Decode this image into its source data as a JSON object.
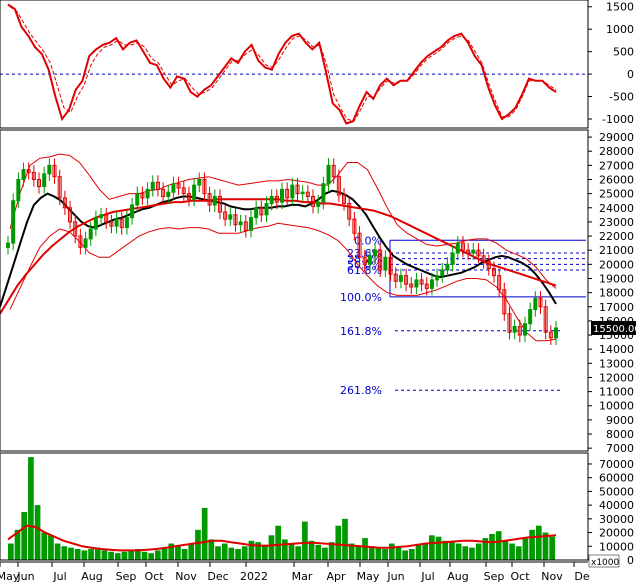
{
  "chart_data": [
    {
      "type": "line",
      "panel": "oscillator",
      "yticks": [
        1500,
        1000,
        500,
        0,
        -500,
        -1000
      ],
      "ylim": [
        -1200,
        1650
      ],
      "zero_line": 0,
      "series": [
        {
          "role": "oscillator",
          "color": "#e00000",
          "style": "solid",
          "values": [
            1550,
            1450,
            1050,
            850,
            600,
            450,
            100,
            -500,
            -1000,
            -800,
            -350,
            -150,
            400,
            550,
            650,
            700,
            800,
            550,
            700,
            750,
            500,
            250,
            200,
            -100,
            -300,
            -50,
            -100,
            -400,
            -500,
            -350,
            -250,
            -50,
            150,
            350,
            250,
            500,
            650,
            300,
            150,
            100,
            450,
            700,
            850,
            900,
            700,
            550,
            700,
            50,
            -650,
            -800,
            -1100,
            -1050,
            -700,
            -400,
            -550,
            -250,
            -100,
            -250,
            -150,
            -150,
            50,
            250,
            400,
            500,
            600,
            750,
            850,
            900,
            700,
            400,
            200,
            -300,
            -700,
            -1000,
            -900,
            -750,
            -450,
            -100,
            -150,
            -150,
            -300,
            -400
          ]
        },
        {
          "role": "signal",
          "color": "#e00000",
          "style": "dashed",
          "values": [
            1500,
            1400,
            1150,
            900,
            700,
            500,
            250,
            -250,
            -750,
            -850,
            -500,
            -250,
            200,
            450,
            600,
            650,
            750,
            650,
            650,
            700,
            600,
            350,
            250,
            0,
            -250,
            -150,
            -100,
            -300,
            -450,
            -400,
            -300,
            -100,
            100,
            300,
            300,
            450,
            550,
            400,
            200,
            150,
            350,
            600,
            800,
            850,
            750,
            600,
            650,
            200,
            -450,
            -750,
            -1000,
            -1050,
            -800,
            -500,
            -500,
            -300,
            -150,
            -200,
            -150,
            -150,
            0,
            200,
            350,
            450,
            550,
            700,
            800,
            850,
            750,
            500,
            250,
            -200,
            -600,
            -950,
            -950,
            -800,
            -500,
            -150,
            -150,
            -150,
            -250,
            -350
          ]
        }
      ]
    },
    {
      "type": "line",
      "panel": "price",
      "yticks": [
        29000,
        28000,
        27000,
        26000,
        25000,
        24000,
        23000,
        22000,
        21000,
        20000,
        19000,
        18000,
        17000,
        16000,
        15000,
        14000,
        13000,
        12000,
        11000,
        10000,
        9000,
        8000,
        7000
      ],
      "ylim": [
        6800,
        29500
      ],
      "current_price": "15500.00",
      "current_value": 15500,
      "price_style": "candlestick",
      "candle_colors": {
        "up": "#009900",
        "down": "#e00000"
      },
      "series": [
        {
          "role": "close",
          "color": "#009900",
          "values": [
            21500,
            24500,
            26000,
            26700,
            26500,
            26000,
            25500,
            26400,
            27000,
            26200,
            24700,
            24000,
            23000,
            22000,
            21200,
            21800,
            22500,
            23300,
            23500,
            23000,
            22700,
            23200,
            22600,
            23300,
            24200,
            25000,
            24700,
            25300,
            25800,
            25300,
            24800,
            25100,
            25700,
            25400,
            25000,
            24600,
            25600,
            26000,
            25000,
            24200,
            24800,
            23700,
            23200,
            23500,
            22800,
            23000,
            22400,
            23300,
            24000,
            23500,
            24300,
            24800,
            24400,
            25300,
            24700,
            25600,
            25000,
            25100,
            24800,
            24100,
            24400,
            25700,
            27000,
            26200,
            24900,
            24300,
            23200,
            22200,
            20500,
            20000,
            20600,
            21000,
            19600,
            20500,
            19300,
            18800,
            19200,
            18600,
            18400,
            18900,
            18600,
            18300,
            18900,
            19200,
            19600,
            20000,
            20800,
            21500,
            21000,
            20800,
            21000,
            20600,
            20200,
            19700,
            19200,
            18200,
            16500,
            15200,
            15600,
            15000,
            15800,
            16800,
            17600,
            17000,
            15200,
            14800,
            15500
          ]
        },
        {
          "role": "ma-fast",
          "color": "#000000",
          "values": [
            17000,
            18500,
            20000,
            21500,
            23000,
            24200,
            24700,
            25000,
            24800,
            24500,
            24000,
            23500,
            23000,
            22700,
            22600,
            22800,
            23000,
            23200,
            23300,
            23500,
            23700,
            23900,
            24000,
            24200,
            24400,
            24500,
            24700,
            24800,
            24800,
            24700,
            24600,
            24500,
            24400,
            24300,
            24100,
            24000,
            23900,
            23900,
            24000,
            24000,
            24000,
            24100,
            24100,
            24200,
            24200,
            24100,
            24300,
            24600,
            25000,
            25200,
            25100,
            24900,
            24600,
            24100,
            23500,
            22700,
            21900,
            21200,
            20600,
            20300,
            20000,
            19800,
            19600,
            19400,
            19200,
            19100,
            19200,
            19300,
            19400,
            19600,
            19800,
            20100,
            20300,
            20500,
            20600,
            20500,
            20300,
            20100,
            19800,
            19300,
            18700,
            18000,
            17200
          ]
        },
        {
          "role": "ma-slow",
          "color": "#e00000",
          "values": [
            16500,
            17500,
            18500,
            19300,
            20000,
            20700,
            21300,
            21800,
            22300,
            22700,
            23000,
            23300,
            23500,
            23700,
            23800,
            23900,
            24000,
            24100,
            24200,
            24300,
            24400,
            24400,
            24500,
            24500,
            24500,
            24600,
            24600,
            24600,
            24600,
            24600,
            24600,
            24600,
            24600,
            24500,
            24500,
            24400,
            24400,
            24300,
            24300,
            24200,
            24100,
            24000,
            23900,
            23800,
            23600,
            23400,
            23100,
            22800,
            22500,
            22200,
            21900,
            21600,
            21300,
            21000,
            20700,
            20400,
            20100,
            19900,
            19700,
            19500,
            19300,
            19100,
            18900,
            18700,
            18500
          ]
        },
        {
          "role": "bb-upper",
          "color": "#e00000",
          "values": [
            22500,
            25000,
            27000,
            27500,
            27600,
            27800,
            27700,
            27200,
            26300,
            25300,
            24600,
            24800,
            25000,
            25000,
            25200,
            25300,
            25600,
            25800,
            26000,
            26100,
            26200,
            26000,
            25800,
            25600,
            25700,
            25800,
            25900,
            25900,
            26000,
            25900,
            25800,
            25600,
            25600,
            26300,
            27200,
            27200,
            26700,
            25400,
            24000,
            22800,
            22200,
            21800,
            21400,
            21300,
            21400,
            21500,
            21700,
            21800,
            21800,
            21500,
            21000,
            20700,
            20400,
            19800,
            18900,
            18300
          ]
        },
        {
          "role": "bb-lower",
          "color": "#e00000",
          "values": [
            16800,
            18300,
            19800,
            21200,
            22000,
            22500,
            22300,
            21600,
            20800,
            20500,
            20500,
            21000,
            21500,
            22000,
            22300,
            22500,
            22600,
            22500,
            22600,
            22600,
            22500,
            22200,
            22200,
            22200,
            22400,
            22600,
            22700,
            22900,
            22800,
            22700,
            22600,
            22400,
            22100,
            21700,
            21000,
            20000,
            19200,
            18500,
            18000,
            17800,
            17800,
            17800,
            18000,
            18200,
            18500,
            18800,
            19000,
            19000,
            18900,
            18400,
            17500,
            16300,
            15200,
            14600,
            14600,
            14700
          ]
        }
      ]
    },
    {
      "type": "bar",
      "panel": "volume",
      "yticks": [
        70000,
        60000,
        50000,
        40000,
        30000,
        20000,
        10000,
        0
      ],
      "ylim": [
        0,
        78000
      ],
      "unit": "x1000",
      "series": [
        {
          "role": "volume",
          "color": "#009900",
          "values": [
            12000,
            22000,
            35000,
            75000,
            40000,
            20000,
            18000,
            12000,
            10000,
            9000,
            8000,
            7000,
            8000,
            9000,
            7000,
            6000,
            5000,
            6000,
            7000,
            8000,
            6000,
            5000,
            7000,
            9000,
            12000,
            10000,
            8000,
            12000,
            22000,
            38000,
            15000,
            10000,
            12000,
            9000,
            8000,
            10000,
            14000,
            13000,
            11000,
            18000,
            25000,
            15000,
            12000,
            10000,
            28000,
            14000,
            11000,
            9000,
            13000,
            25000,
            30000,
            12000,
            10000,
            16000,
            10000,
            9000,
            8000,
            12000,
            9000,
            7000,
            8000,
            11000,
            12000,
            18000,
            17000,
            14000,
            13000,
            12000,
            10000,
            9000,
            12000,
            16000,
            19000,
            21000,
            14000,
            12000,
            10000,
            16000,
            22000,
            25000,
            20000,
            17000
          ]
        },
        {
          "role": "volume-ma",
          "color": "#e00000",
          "values": [
            15000,
            20000,
            25000,
            24000,
            20000,
            17000,
            14000,
            12000,
            10000,
            9000,
            8000,
            7500,
            7000,
            7000,
            7000,
            7500,
            8000,
            9000,
            10000,
            11000,
            12000,
            13000,
            14000,
            14000,
            13000,
            12000,
            11000,
            10500,
            10500,
            11000,
            11500,
            12000,
            12500,
            12500,
            12000,
            11500,
            11000,
            10500,
            10000,
            9500,
            9000,
            9000,
            9500,
            10000,
            11000,
            12000,
            12500,
            13000,
            13500,
            14000,
            14000,
            13500,
            13000,
            13500,
            14500,
            15500,
            16500,
            17000,
            17500,
            18000
          ]
        }
      ]
    }
  ],
  "fibonacci": {
    "color": "#0000cc",
    "levels": [
      {
        "label": "0.0%",
        "value": 21700
      },
      {
        "label": "23.6%",
        "value": 20800
      },
      {
        "label": "38.2%",
        "value": 20400
      },
      {
        "label": "50.0%",
        "value": 20000
      },
      {
        "label": "61.8%",
        "value": 19600
      },
      {
        "label": "100.0%",
        "value": 17700
      },
      {
        "label": "161.8%",
        "value": 15300
      },
      {
        "label": "261.8%",
        "value": 11100
      }
    ]
  },
  "x_axis": {
    "labels": [
      "May",
      "Jun",
      "Jul",
      "Aug",
      "Sep",
      "Oct",
      "Nov",
      "Dec",
      "2022",
      "Mar",
      "Apr",
      "May",
      "Jun",
      "Jul",
      "Aug",
      "Sep",
      "Oct",
      "Nov",
      "De"
    ]
  },
  "colors": {
    "grid": "#b0b0b0",
    "axis": "#000000",
    "zero_line": "#0000cc",
    "price_box_bg": "#000000",
    "price_box_text": "#ffffff"
  }
}
